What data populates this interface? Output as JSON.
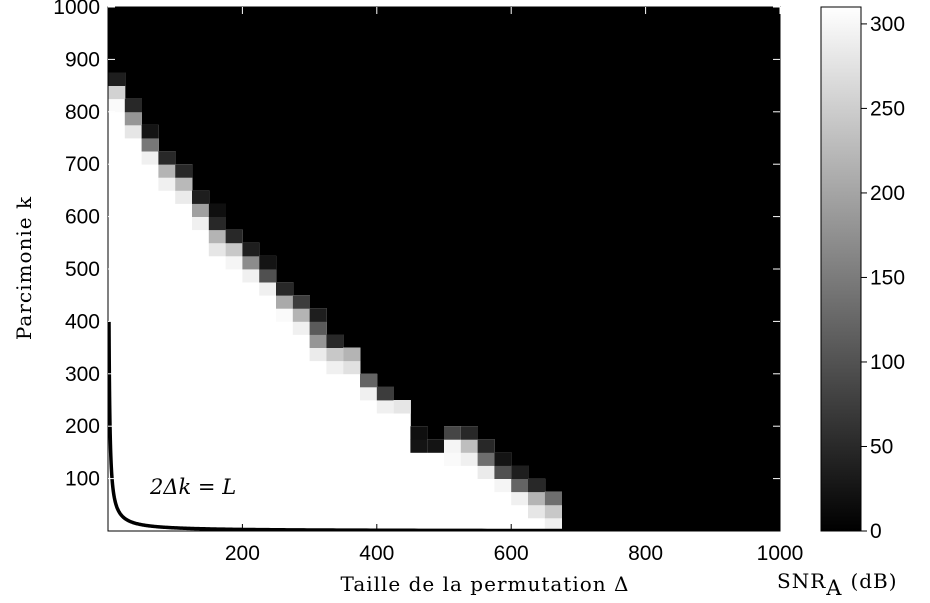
{
  "chart_data": {
    "type": "heatmap",
    "title": "",
    "xlabel": "Taille de la permutation Δ",
    "ylabel": "Parcimonie k",
    "xlim": [
      0,
      1000
    ],
    "ylim": [
      0,
      1000
    ],
    "xticks": [
      "200",
      "400",
      "600",
      "800",
      "1000"
    ],
    "yticks": [
      "100",
      "200",
      "300",
      "400",
      "500",
      "600",
      "700",
      "800",
      "900",
      "1000"
    ],
    "colormap": "gray",
    "colorbar": {
      "label": "SNR",
      "label_subscript": "A",
      "label_unit": "(dB)",
      "range": [
        0,
        310
      ],
      "ticks": [
        "0",
        "50",
        "100",
        "150",
        "200",
        "250",
        "300"
      ]
    },
    "annotation": "2Δk = L",
    "curve": {
      "equation": "2Δk = L",
      "L": 1200
    },
    "cell_size": [
      25,
      25
    ],
    "boundary": [
      {
        "delta": 0,
        "k_zero": 875,
        "ramp": [
          250,
          210,
          30
        ]
      },
      {
        "delta": 25,
        "k_zero": 825,
        "ramp": [
          230,
          150,
          40
        ]
      },
      {
        "delta": 50,
        "k_zero": 775,
        "ramp": [
          240,
          120,
          20
        ]
      },
      {
        "delta": 75,
        "k_zero": 725,
        "ramp": [
          240,
          180,
          40
        ]
      },
      {
        "delta": 100,
        "k_zero": 700,
        "ramp": [
          235,
          185,
          40
        ]
      },
      {
        "delta": 125,
        "k_zero": 650,
        "ramp": [
          240,
          160,
          30
        ]
      },
      {
        "delta": 150,
        "k_zero": 625,
        "ramp": [
          230,
          180,
          40,
          15
        ]
      },
      {
        "delta": 175,
        "k_zero": 575,
        "ramp": [
          245,
          200,
          40
        ]
      },
      {
        "delta": 200,
        "k_zero": 550,
        "ramp": [
          240,
          140,
          30
        ]
      },
      {
        "delta": 225,
        "k_zero": 525,
        "ramp": [
          240,
          80,
          20
        ]
      },
      {
        "delta": 250,
        "k_zero": 475,
        "ramp": [
          250,
          170,
          40
        ]
      },
      {
        "delta": 275,
        "k_zero": 450,
        "ramp": [
          240,
          180,
          60
        ]
      },
      {
        "delta": 300,
        "k_zero": 425,
        "ramp": [
          235,
          150,
          90,
          30
        ]
      },
      {
        "delta": 325,
        "k_zero": 375,
        "ramp": [
          240,
          200,
          40
        ]
      },
      {
        "delta": 350,
        "k_zero": 350,
        "ramp": [
          225,
          180
        ]
      },
      {
        "delta": 375,
        "k_zero": 300,
        "ramp": [
          240,
          100
        ]
      },
      {
        "delta": 400,
        "k_zero": 275,
        "ramp": [
          240,
          60
        ]
      },
      {
        "delta": 425,
        "k_zero": 250,
        "ramp": [
          230
        ]
      },
      {
        "delta": 450,
        "k_zero": 200,
        "ramp": [
          20,
          15
        ]
      },
      {
        "delta": 475,
        "k_zero": 175,
        "ramp": [
          20
        ]
      },
      {
        "delta": 500,
        "k_zero": 200,
        "ramp": [
          250,
          245,
          70
        ]
      },
      {
        "delta": 525,
        "k_zero": 200,
        "ramp": [
          240,
          190,
          40
        ]
      },
      {
        "delta": 550,
        "k_zero": 175,
        "ramp": [
          235,
          110,
          40
        ]
      },
      {
        "delta": 575,
        "k_zero": 150,
        "ramp": [
          245,
          80,
          20
        ]
      },
      {
        "delta": 600,
        "k_zero": 125,
        "ramp": [
          240,
          100,
          30
        ]
      },
      {
        "delta": 625,
        "k_zero": 100,
        "ramp": [
          230,
          180,
          40
        ]
      },
      {
        "delta": 650,
        "k_zero": 75,
        "ramp": [
          240,
          200,
          110
        ]
      }
    ]
  }
}
